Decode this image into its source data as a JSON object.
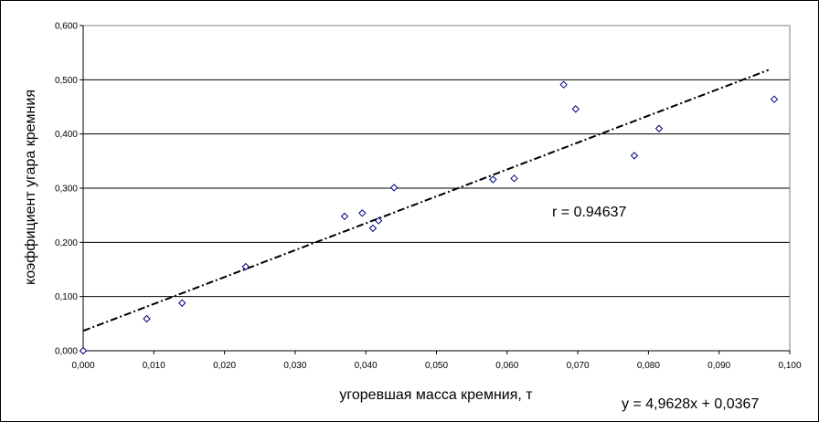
{
  "chart_data": {
    "type": "scatter",
    "title": "",
    "xlabel": "угоревшая масса кремния, т",
    "ylabel": "коэффициент угара кремния",
    "xlim": [
      0,
      0.1
    ],
    "ylim": [
      0,
      0.6
    ],
    "x_ticks": [
      "0,000",
      "0,010",
      "0,020",
      "0,030",
      "0,040",
      "0,050",
      "0,060",
      "0,070",
      "0,080",
      "0,090",
      "0,100"
    ],
    "y_ticks": [
      "0,000",
      "0,100",
      "0,200",
      "0,300",
      "0,400",
      "0,500",
      "0,600"
    ],
    "grid": "horizontal",
    "legend": "none",
    "series": [
      {
        "marker": "diamond",
        "color": "#000080",
        "points": [
          [
            0.0,
            0.0
          ],
          [
            0.009,
            0.059
          ],
          [
            0.014,
            0.088
          ],
          [
            0.023,
            0.155
          ],
          [
            0.037,
            0.248
          ],
          [
            0.0395,
            0.254
          ],
          [
            0.041,
            0.226
          ],
          [
            0.0418,
            0.24
          ],
          [
            0.044,
            0.301
          ],
          [
            0.058,
            0.316
          ],
          [
            0.061,
            0.318
          ],
          [
            0.068,
            0.491
          ],
          [
            0.0697,
            0.446
          ],
          [
            0.078,
            0.36
          ],
          [
            0.0815,
            0.41
          ],
          [
            0.0978,
            0.464
          ]
        ]
      }
    ],
    "trendline": {
      "style": "dash-dot",
      "color": "#000000",
      "slope": 4.9628,
      "intercept": 0.0367,
      "x_start": 0.0,
      "x_end": 0.097
    },
    "annotations": {
      "correlation": "r = 0.94637",
      "equation": "y = 4,9628x + 0,0367"
    }
  }
}
